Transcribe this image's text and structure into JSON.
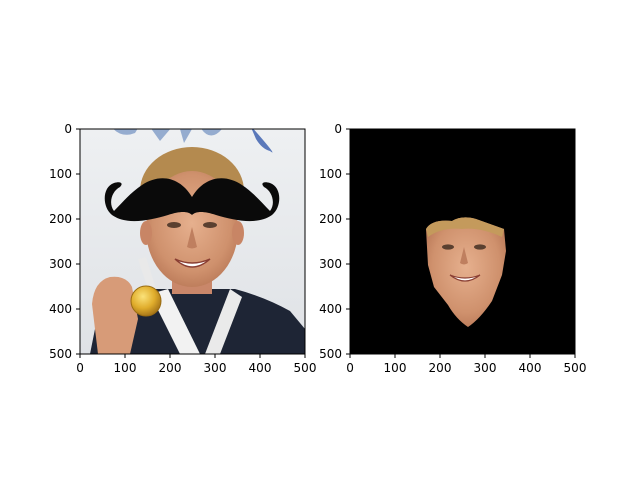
{
  "figure": {
    "panels": [
      {
        "name": "left",
        "xlim": [
          0,
          500
        ],
        "ylim": [
          500,
          0
        ],
        "x_ticks": [
          "0",
          "100",
          "200",
          "300",
          "400",
          "500"
        ],
        "y_ticks": [
          "0",
          "100",
          "200",
          "300",
          "400",
          "500"
        ],
        "content": "photo of smiling athlete holding a gold medal with a black mustache overlay covering the forehead"
      },
      {
        "name": "right",
        "xlim": [
          0,
          500
        ],
        "ylim": [
          500,
          0
        ],
        "x_ticks": [
          "0",
          "100",
          "200",
          "300",
          "400",
          "500"
        ],
        "y_ticks": [
          "0",
          "100",
          "200",
          "300",
          "400",
          "500"
        ],
        "content": "same face cut out on a black background"
      }
    ],
    "colors": {
      "background": "#ffffff",
      "mask_background": "#000000",
      "mustache": "#0a0a0a",
      "skin": "#d69a78",
      "hair": "#b58a4e",
      "medal": "#e2b12f"
    }
  }
}
